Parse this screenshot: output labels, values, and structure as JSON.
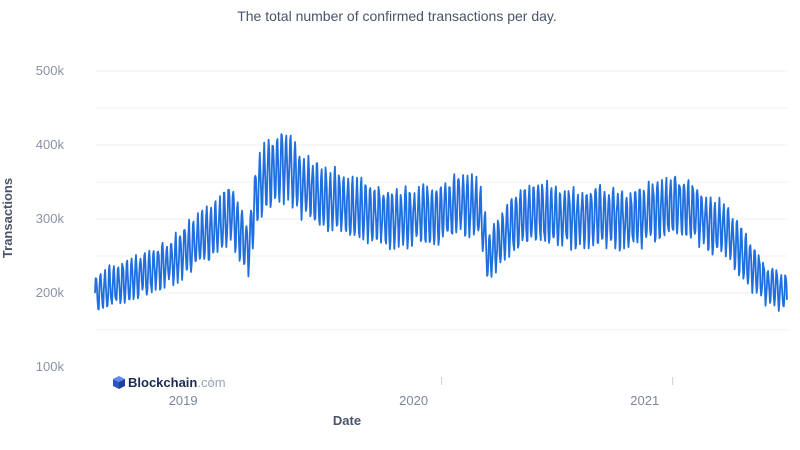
{
  "chart_data": {
    "type": "line",
    "title": "",
    "subtitle": "The total number of confirmed transactions per day.",
    "xlabel": "Date",
    "ylabel": "Transactions",
    "x_ticks": [
      "2019",
      "2020",
      "2021"
    ],
    "x_tick_dates": [
      "2019-01-01",
      "2020-01-01",
      "2021-01-01"
    ],
    "xlim": [
      "2018-07-01",
      "2021-07-01"
    ],
    "y_ticks": [
      "100k",
      "200k",
      "300k",
      "400k",
      "500k"
    ],
    "y_tick_values": [
      100000,
      200000,
      300000,
      400000,
      500000
    ],
    "ylim": [
      100000,
      500000
    ],
    "grid": true,
    "line_color": "#1f6fe0",
    "series": [
      {
        "x": [
          "2018-07-01",
          "2018-08-01",
          "2018-09-01",
          "2018-10-01",
          "2018-11-01",
          "2018-12-01",
          "2019-01-01",
          "2019-02-01",
          "2019-03-01",
          "2019-03-15",
          "2019-04-01",
          "2019-05-01",
          "2019-05-20",
          "2019-06-01",
          "2019-07-01",
          "2019-08-01",
          "2019-09-01",
          "2019-10-01",
          "2019-11-01",
          "2019-12-01",
          "2020-01-01",
          "2020-02-01",
          "2020-03-01",
          "2020-03-15",
          "2020-04-01",
          "2020-05-01",
          "2020-06-01",
          "2020-07-01",
          "2020-08-01",
          "2020-09-01",
          "2020-10-01",
          "2020-11-01",
          "2020-12-01",
          "2021-01-01",
          "2021-02-01",
          "2021-03-01",
          "2021-04-01",
          "2021-05-01",
          "2021-06-01",
          "2021-07-01"
        ],
        "y": [
          200000,
          210000,
          220000,
          230000,
          245000,
          265000,
          280000,
          310000,
          260000,
          340000,
          360000,
          375000,
          355000,
          340000,
          330000,
          320000,
          310000,
          305000,
          300000,
          305000,
          310000,
          320000,
          315000,
          250000,
          270000,
          300000,
          310000,
          305000,
          300000,
          305000,
          300000,
          300000,
          310000,
          320000,
          310000,
          295000,
          280000,
          240000,
          210000,
          200000
        ]
      }
    ]
  },
  "branding": {
    "logo_icon": "blockchain-cube-icon",
    "name_main": "Blockchain",
    "name_suffix": ".com",
    "logo_color": "#3c6fe0"
  }
}
